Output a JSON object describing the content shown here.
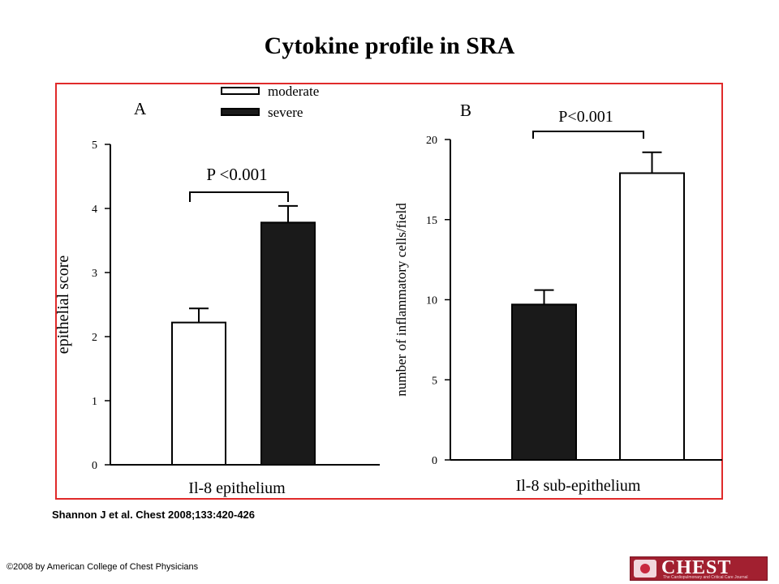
{
  "title": "Cytokine profile in SRA",
  "legend": {
    "moderate_label": "moderate",
    "severe_label": "severe",
    "moderate_color": "#ffffff",
    "severe_color": "#1a1a1a"
  },
  "citation": "Shannon J et al. Chest 2008;133:420-426",
  "copyright": "©2008 by American College of Chest Physicians",
  "logo": {
    "text": "CHEST",
    "subtitle": "The Cardiopulmonary and Critical Care Journal"
  },
  "colors": {
    "frame": "#e02a2a"
  },
  "chart_data": [
    {
      "panel": "A",
      "type": "bar",
      "categories": [
        "moderate",
        "severe"
      ],
      "values": [
        2.22,
        3.78
      ],
      "errors": [
        0.22,
        0.26
      ],
      "ylim": [
        0,
        5
      ],
      "yticks": [
        0,
        1,
        2,
        3,
        4,
        5
      ],
      "xlabel": "Il-8 epithelium",
      "ylabel": "epithelial score",
      "annotation": "P <0.001",
      "grid": false
    },
    {
      "panel": "B",
      "type": "bar",
      "categories": [
        "severe",
        "moderate"
      ],
      "values": [
        9.7,
        17.9
      ],
      "errors": [
        0.9,
        1.3
      ],
      "ylim": [
        0,
        20
      ],
      "yticks": [
        0,
        5,
        10,
        15,
        20
      ],
      "xlabel": "Il-8 sub-epithelium",
      "ylabel": "number of inflammatory cells/field",
      "annotation": "P<0.001",
      "grid": false
    }
  ]
}
